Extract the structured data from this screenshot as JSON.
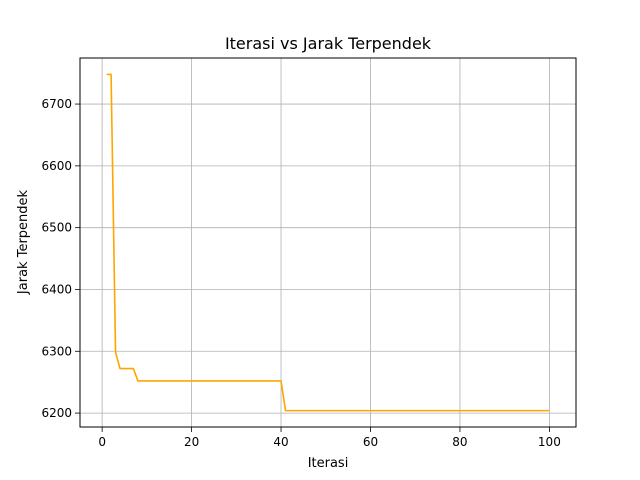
{
  "chart_data": {
    "type": "line",
    "title": "Iterasi vs Jarak Terpendek",
    "xlabel": "Iterasi",
    "ylabel": "Jarak Terpendek",
    "xlim": [
      -4.95,
      105.95
    ],
    "ylim": [
      6177.5,
      6774.5
    ],
    "xticks": [
      0,
      20,
      40,
      60,
      80,
      100
    ],
    "yticks": [
      6200,
      6300,
      6400,
      6500,
      6600,
      6700
    ],
    "grid": true,
    "line_color": "#ffa500",
    "series": [
      {
        "x": [
          1,
          2,
          3,
          4,
          5,
          6,
          7,
          8,
          9,
          10,
          11,
          12,
          13,
          14,
          15,
          16,
          17,
          18,
          19,
          20,
          21,
          22,
          23,
          24,
          25,
          26,
          27,
          28,
          29,
          30,
          31,
          32,
          33,
          34,
          35,
          36,
          37,
          38,
          39,
          40,
          41,
          42,
          43,
          44,
          45,
          46,
          47,
          48,
          49,
          50,
          51,
          52,
          53,
          54,
          55,
          56,
          57,
          58,
          59,
          60,
          61,
          62,
          63,
          64,
          65,
          66,
          67,
          68,
          69,
          70,
          71,
          72,
          73,
          74,
          75,
          76,
          77,
          78,
          79,
          80,
          81,
          82,
          83,
          84,
          85,
          86,
          87,
          88,
          89,
          90,
          91,
          92,
          93,
          94,
          95,
          96,
          97,
          98,
          99,
          100
        ],
        "y": [
          6748,
          6748,
          6298,
          6272,
          6272,
          6272,
          6272,
          6252,
          6252,
          6252,
          6252,
          6252,
          6252,
          6252,
          6252,
          6252,
          6252,
          6252,
          6252,
          6252,
          6252,
          6252,
          6252,
          6252,
          6252,
          6252,
          6252,
          6252,
          6252,
          6252,
          6252,
          6252,
          6252,
          6252,
          6252,
          6252,
          6252,
          6252,
          6252,
          6252,
          6204,
          6204,
          6204,
          6204,
          6204,
          6204,
          6204,
          6204,
          6204,
          6204,
          6204,
          6204,
          6204,
          6204,
          6204,
          6204,
          6204,
          6204,
          6204,
          6204,
          6204,
          6204,
          6204,
          6204,
          6204,
          6204,
          6204,
          6204,
          6204,
          6204,
          6204,
          6204,
          6204,
          6204,
          6204,
          6204,
          6204,
          6204,
          6204,
          6204,
          6204,
          6204,
          6204,
          6204,
          6204,
          6204,
          6204,
          6204,
          6204,
          6204,
          6204,
          6204,
          6204,
          6204,
          6204,
          6204,
          6204,
          6204,
          6204,
          6204
        ]
      }
    ]
  }
}
